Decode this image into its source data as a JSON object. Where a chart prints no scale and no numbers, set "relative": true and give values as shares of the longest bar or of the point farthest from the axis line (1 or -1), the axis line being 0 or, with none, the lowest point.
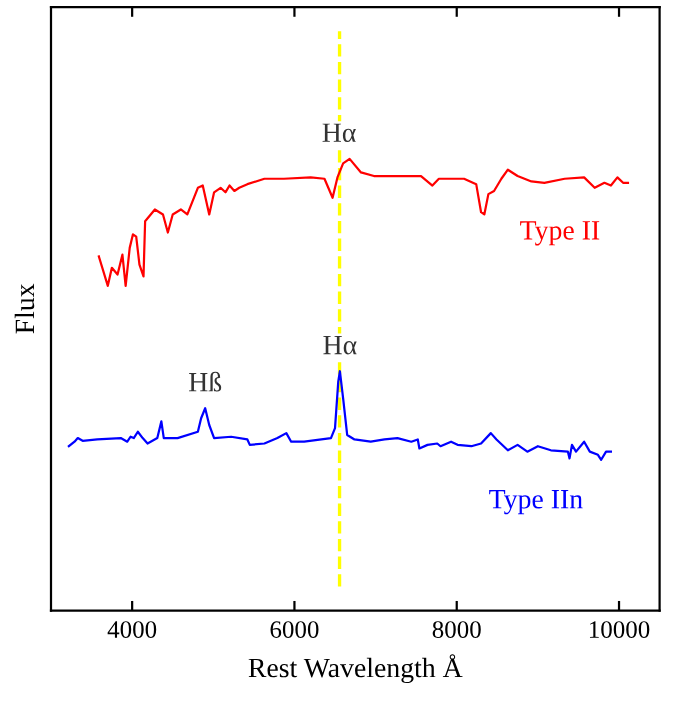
{
  "chart_data": {
    "type": "line",
    "relative": true,
    "xlabel": "Rest Wavelength Å",
    "ylabel": "Flux",
    "xlim": [
      3000,
      10500
    ],
    "xticks": [
      4000,
      6000,
      8000,
      10000
    ],
    "grid": false,
    "legend": false,
    "marker": "none",
    "line_style": "solid",
    "series": [
      {
        "name": "Type II",
        "color": "#ff0000",
        "x": [
          3590,
          3700,
          3750,
          3820,
          3880,
          3920,
          3970,
          4010,
          4050,
          4090,
          4140,
          4160,
          4280,
          4380,
          4440,
          4500,
          4600,
          4680,
          4810,
          4870,
          4950,
          5010,
          5090,
          5150,
          5200,
          5260,
          5320,
          5420,
          5630,
          5870,
          6200,
          6370,
          6470,
          6530,
          6600,
          6680,
          6820,
          6980,
          7270,
          7560,
          7700,
          7780,
          8090,
          8240,
          8300,
          8340,
          8390,
          8460,
          8550,
          8630,
          8750,
          8920,
          9080,
          9330,
          9570,
          9700,
          9820,
          9900,
          9980,
          10050,
          10110
        ],
        "values": [
          0.784,
          0.719,
          0.759,
          0.744,
          0.788,
          0.719,
          0.803,
          0.833,
          0.828,
          0.766,
          0.74,
          0.862,
          0.888,
          0.877,
          0.837,
          0.877,
          0.888,
          0.877,
          0.936,
          0.941,
          0.877,
          0.926,
          0.936,
          0.926,
          0.941,
          0.929,
          0.936,
          0.944,
          0.956,
          0.956,
          0.959,
          0.956,
          0.914,
          0.959,
          0.99,
          1,
          0.97,
          0.962,
          0.962,
          0.962,
          0.941,
          0.956,
          0.956,
          0.944,
          0.882,
          0.877,
          0.922,
          0.929,
          0.956,
          0.976,
          0.962,
          0.95,
          0.947,
          0.956,
          0.959,
          0.936,
          0.947,
          0.941,
          0.959,
          0.947,
          0.947
        ]
      },
      {
        "name": "Type IIn",
        "color": "#0000ff",
        "x": [
          3220,
          3290,
          3330,
          3390,
          3570,
          3860,
          3940,
          3980,
          4020,
          4070,
          4130,
          4190,
          4310,
          4360,
          4390,
          4560,
          4810,
          4850,
          4900,
          4950,
          5010,
          5220,
          5420,
          5450,
          5630,
          5790,
          5900,
          5960,
          6120,
          6450,
          6500,
          6540,
          6560,
          6600,
          6650,
          6740,
          6940,
          7110,
          7270,
          7440,
          7520,
          7540,
          7640,
          7760,
          7800,
          7930,
          8010,
          8180,
          8300,
          8420,
          8490,
          8630,
          8750,
          8870,
          9000,
          9160,
          9370,
          9390,
          9420,
          9470,
          9570,
          9640,
          9740,
          9780,
          9840,
          9900
        ],
        "values": [
          0.364,
          0.374,
          0.382,
          0.376,
          0.379,
          0.382,
          0.374,
          0.385,
          0.382,
          0.396,
          0.382,
          0.37,
          0.382,
          0.419,
          0.382,
          0.382,
          0.396,
          0.426,
          0.448,
          0.411,
          0.382,
          0.385,
          0.379,
          0.367,
          0.37,
          0.382,
          0.393,
          0.374,
          0.374,
          0.382,
          0.404,
          0.507,
          0.53,
          0.47,
          0.389,
          0.379,
          0.374,
          0.379,
          0.382,
          0.374,
          0.379,
          0.359,
          0.367,
          0.37,
          0.364,
          0.374,
          0.367,
          0.364,
          0.37,
          0.393,
          0.379,
          0.355,
          0.367,
          0.352,
          0.364,
          0.355,
          0.352,
          0.337,
          0.367,
          0.352,
          0.374,
          0.352,
          0.345,
          0.334,
          0.352,
          0.352
        ]
      }
    ],
    "ref_lines": [
      {
        "axis": "x",
        "value": 6556,
        "color": "#ffff00",
        "line_style": "dashed"
      }
    ],
    "annotations": [
      {
        "text": "Hα",
        "x": 6550,
        "y": 1
      },
      {
        "text": "Hα",
        "x": 6560,
        "y": 0.53
      },
      {
        "text": "Hß",
        "x": 4900,
        "y": 0.448
      }
    ]
  }
}
